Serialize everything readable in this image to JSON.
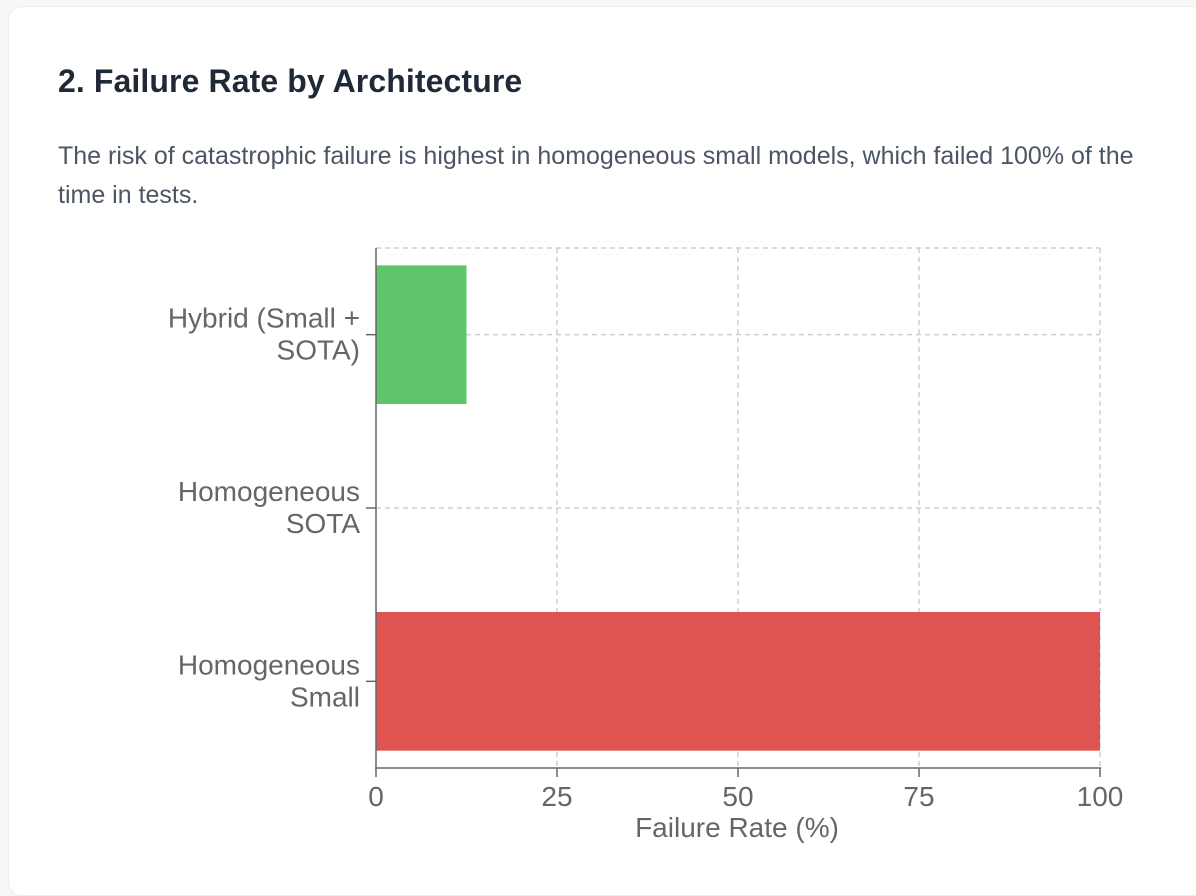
{
  "section": {
    "title": "2. Failure Rate by Architecture",
    "description": "The risk of catastrophic failure is highest in homogeneous small models, which failed 100% of the time in tests."
  },
  "chart_data": {
    "type": "bar",
    "orientation": "horizontal",
    "title": "",
    "xlabel": "Failure Rate (%)",
    "ylabel": "",
    "xlim": [
      0,
      100
    ],
    "xticks": [
      0,
      25,
      50,
      75,
      100
    ],
    "grid": true,
    "categories": [
      [
        "Hybrid (Small +",
        "SOTA)"
      ],
      [
        "Homogeneous",
        "SOTA"
      ],
      [
        "Homogeneous",
        "Small"
      ]
    ],
    "values": [
      12.5,
      0,
      100
    ],
    "colors": [
      "#5fc46a",
      "#5fc46a",
      "#df5450"
    ]
  }
}
